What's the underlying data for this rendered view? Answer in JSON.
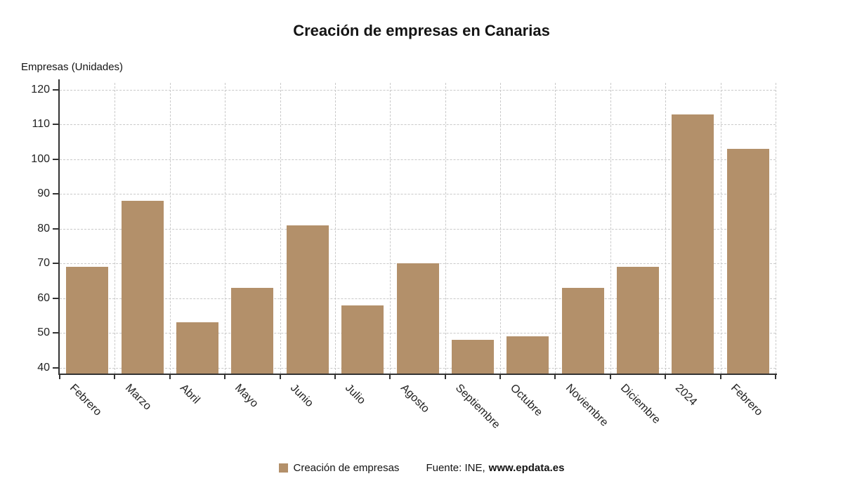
{
  "title": "Creación de empresas en Canarias",
  "y_unit_label": "Empresas (Unidades)",
  "legend": {
    "series_label": "Creación de empresas",
    "source_prefix": "Fuente: INE,",
    "source_link": "www.epdata.es"
  },
  "colors": {
    "bar": "#b3906a",
    "axis": "#333333",
    "grid": "#c9c9c9",
    "text": "#222222",
    "title": "#141414"
  },
  "chart_data": {
    "type": "bar",
    "title": "Creación de empresas en Canarias",
    "ylabel": "Empresas (Unidades)",
    "xlabel": "",
    "categories": [
      "Febrero",
      "Marzo",
      "Abril",
      "Mayo",
      "Junio",
      "Julio",
      "Agosto",
      "Septiembre",
      "Octubre",
      "Noviembre",
      "Diciembre",
      "2024",
      "Febrero"
    ],
    "values": [
      69,
      88,
      53,
      63,
      81,
      58,
      70,
      48,
      49,
      63,
      69,
      113,
      103
    ],
    "series_name": "Creación de empresas",
    "yticks": [
      40,
      50,
      60,
      70,
      80,
      90,
      100,
      110,
      120
    ],
    "ylim": [
      38.3,
      122
    ],
    "grid": true,
    "grid_style": "dashed",
    "legend_position": "bottom",
    "x_label_rotation": 45
  }
}
